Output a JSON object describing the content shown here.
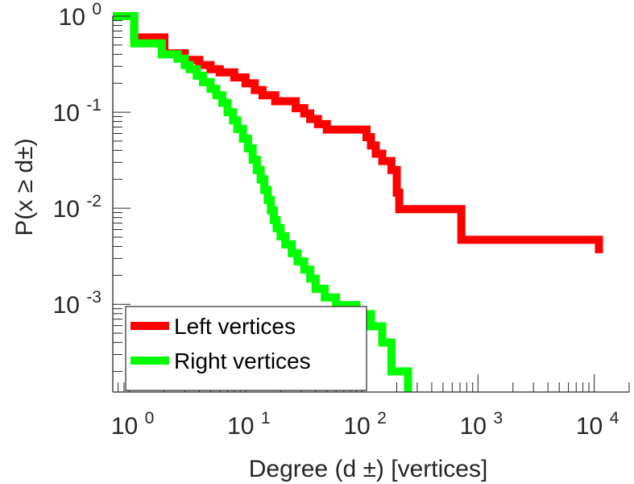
{
  "chart_data": {
    "type": "line",
    "title": "",
    "xlabel": "Degree (d  ±) [vertices]",
    "ylabel": "P(x ≥ d±)",
    "x_scale": "log",
    "y_scale": "log",
    "xlim": [
      0.72,
      20000
    ],
    "ylim": [
      0.000122,
      1.0
    ],
    "x_ticks": [
      {
        "value": 1,
        "base": "10",
        "exp": "0"
      },
      {
        "value": 10,
        "base": "10",
        "exp": "1"
      },
      {
        "value": 100,
        "base": "10",
        "exp": "2"
      },
      {
        "value": 1000,
        "base": "10",
        "exp": "3"
      },
      {
        "value": 10000,
        "base": "10",
        "exp": "4"
      }
    ],
    "y_ticks": [
      {
        "value": 1,
        "base": "10",
        "exp": "0"
      },
      {
        "value": 0.1,
        "base": "10",
        "exp": "-1"
      },
      {
        "value": 0.01,
        "base": "10",
        "exp": "-2"
      },
      {
        "value": 0.001,
        "base": "10",
        "exp": "-3"
      }
    ],
    "grid": false,
    "legend_position": "bottom-left",
    "series": [
      {
        "name": "Left vertices",
        "color": "#ff0000",
        "points": [
          [
            0.72,
            1.0
          ],
          [
            1.1,
            1.0
          ],
          [
            1.1,
            0.6
          ],
          [
            2.0,
            0.6
          ],
          [
            2.0,
            0.41
          ],
          [
            3.0,
            0.41
          ],
          [
            3.0,
            0.35
          ],
          [
            4.0,
            0.35
          ],
          [
            4.0,
            0.31
          ],
          [
            5.0,
            0.31
          ],
          [
            5.0,
            0.28
          ],
          [
            6.0,
            0.28
          ],
          [
            6.0,
            0.26
          ],
          [
            8.0,
            0.26
          ],
          [
            8.0,
            0.23
          ],
          [
            10.0,
            0.23
          ],
          [
            10.0,
            0.2
          ],
          [
            12.0,
            0.2
          ],
          [
            12.0,
            0.17
          ],
          [
            14.0,
            0.17
          ],
          [
            14.0,
            0.15
          ],
          [
            18.0,
            0.15
          ],
          [
            18.0,
            0.13
          ],
          [
            27.0,
            0.13
          ],
          [
            27.0,
            0.11
          ],
          [
            32.0,
            0.11
          ],
          [
            32.0,
            0.097
          ],
          [
            36.0,
            0.097
          ],
          [
            36.0,
            0.085
          ],
          [
            42.0,
            0.085
          ],
          [
            42.0,
            0.075
          ],
          [
            50.0,
            0.075
          ],
          [
            50.0,
            0.066
          ],
          [
            110.0,
            0.066
          ],
          [
            110.0,
            0.055
          ],
          [
            120.0,
            0.055
          ],
          [
            120.0,
            0.045
          ],
          [
            132.0,
            0.045
          ],
          [
            132.0,
            0.037
          ],
          [
            150.0,
            0.037
          ],
          [
            150.0,
            0.031
          ],
          [
            180.0,
            0.031
          ],
          [
            180.0,
            0.025
          ],
          [
            200.0,
            0.025
          ],
          [
            200.0,
            0.0145
          ],
          [
            210.0,
            0.0145
          ],
          [
            210.0,
            0.0098
          ],
          [
            720.0,
            0.0098
          ],
          [
            720.0,
            0.0047
          ],
          [
            11000.0,
            0.0047
          ],
          [
            11000.0,
            0.0034
          ]
        ]
      },
      {
        "name": "Right vertices",
        "color": "#00ff00",
        "points": [
          [
            0.72,
            1.0
          ],
          [
            1.1,
            1.0
          ],
          [
            1.1,
            0.52
          ],
          [
            1.9,
            0.52
          ],
          [
            1.9,
            0.4
          ],
          [
            2.6,
            0.4
          ],
          [
            2.6,
            0.36
          ],
          [
            3.0,
            0.36
          ],
          [
            3.0,
            0.31
          ],
          [
            3.3,
            0.31
          ],
          [
            3.3,
            0.28
          ],
          [
            3.8,
            0.28
          ],
          [
            3.8,
            0.24
          ],
          [
            4.3,
            0.24
          ],
          [
            4.3,
            0.205
          ],
          [
            5.0,
            0.205
          ],
          [
            5.0,
            0.175
          ],
          [
            5.6,
            0.175
          ],
          [
            5.6,
            0.15
          ],
          [
            6.3,
            0.15
          ],
          [
            6.3,
            0.125
          ],
          [
            7.0,
            0.125
          ],
          [
            7.0,
            0.1
          ],
          [
            7.8,
            0.1
          ],
          [
            7.8,
            0.082
          ],
          [
            8.5,
            0.082
          ],
          [
            8.5,
            0.067
          ],
          [
            9.5,
            0.067
          ],
          [
            9.5,
            0.053
          ],
          [
            10.5,
            0.053
          ],
          [
            10.5,
            0.042
          ],
          [
            11.5,
            0.042
          ],
          [
            11.5,
            0.032
          ],
          [
            12.5,
            0.032
          ],
          [
            12.5,
            0.025
          ],
          [
            13.5,
            0.025
          ],
          [
            13.5,
            0.02
          ],
          [
            14.5,
            0.02
          ],
          [
            14.5,
            0.0155
          ],
          [
            15.5,
            0.0155
          ],
          [
            15.5,
            0.0122
          ],
          [
            16.5,
            0.0122
          ],
          [
            16.5,
            0.0095
          ],
          [
            17.5,
            0.0095
          ],
          [
            17.5,
            0.0075
          ],
          [
            18.5,
            0.0075
          ],
          [
            18.5,
            0.0062
          ],
          [
            20.0,
            0.0062
          ],
          [
            20.0,
            0.0051
          ],
          [
            22.0,
            0.0051
          ],
          [
            22.0,
            0.0042
          ],
          [
            25.0,
            0.0042
          ],
          [
            25.0,
            0.0034
          ],
          [
            28.0,
            0.0034
          ],
          [
            28.0,
            0.0028
          ],
          [
            32.0,
            0.0028
          ],
          [
            32.0,
            0.0023
          ],
          [
            36.0,
            0.0023
          ],
          [
            36.0,
            0.00185
          ],
          [
            40.0,
            0.00185
          ],
          [
            40.0,
            0.00145
          ],
          [
            48.0,
            0.00145
          ],
          [
            48.0,
            0.00118
          ],
          [
            60.0,
            0.00118
          ],
          [
            60.0,
            0.00098
          ],
          [
            90.0,
            0.00098
          ],
          [
            90.0,
            0.00079
          ],
          [
            120.0,
            0.00079
          ],
          [
            120.0,
            0.00059
          ],
          [
            150.0,
            0.00059
          ],
          [
            150.0,
            0.0004
          ],
          [
            180.0,
            0.0004
          ],
          [
            180.0,
            0.0002
          ],
          [
            250.0,
            0.0002
          ],
          [
            250.0,
            0.000122
          ]
        ]
      }
    ]
  }
}
